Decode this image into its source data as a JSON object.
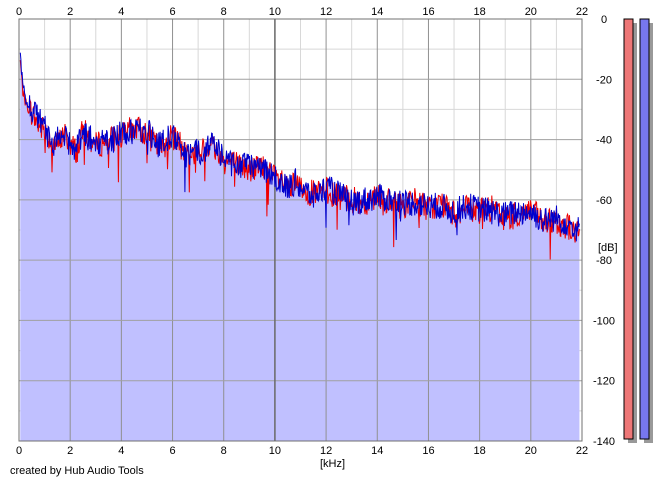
{
  "chart_data": {
    "type": "area",
    "title": "",
    "xlabel": "[kHz]",
    "ylabel": "[dB]",
    "xlim": [
      0,
      22
    ],
    "ylim": [
      -140,
      0
    ],
    "x_ticks": [
      "0",
      "2",
      "4",
      "6",
      "8",
      "10",
      "12",
      "14",
      "16",
      "18",
      "20",
      "22"
    ],
    "y_ticks": [
      "0",
      "-20",
      "-40",
      "-60",
      "-80",
      "-100",
      "-120",
      "-140"
    ],
    "grid": true,
    "legend": "none",
    "colors": {
      "fill": "#c0c0ff",
      "left_channel": "#ee0000",
      "right_channel": "#0000cc",
      "meter_left": "#ee7777",
      "meter_right": "#7777ee"
    },
    "series": [
      {
        "color": "#ee0000",
        "x": [
          0.05,
          0.15,
          0.3,
          0.5,
          0.75,
          1.0,
          1.25,
          1.5,
          1.75,
          2.0,
          2.25,
          2.5,
          3.0,
          3.5,
          4.0,
          4.5,
          5.0,
          5.5,
          6.0,
          6.5,
          7.0,
          7.5,
          8.0,
          8.5,
          9.0,
          9.5,
          10.0,
          10.3,
          10.5,
          10.8,
          11.0,
          11.5,
          12.0,
          12.5,
          13.0,
          13.5,
          14.0,
          14.5,
          15.0,
          15.5,
          16.0,
          16.5,
          17.0,
          17.5,
          18.0,
          18.5,
          19.0,
          19.5,
          20.0,
          20.5,
          21.0,
          21.5,
          21.9
        ],
        "y": [
          -14,
          -24,
          -29,
          -31,
          -35,
          -37,
          -40,
          -42,
          -38,
          -41,
          -44,
          -37,
          -42,
          -40,
          -39,
          -36,
          -38,
          -43,
          -39,
          -44,
          -45,
          -41,
          -47,
          -48,
          -50,
          -49,
          -53,
          -54,
          -57,
          -55,
          -56,
          -58,
          -57,
          -59,
          -60,
          -61,
          -58,
          -61,
          -62,
          -60,
          -63,
          -61,
          -65,
          -63,
          -64,
          -63,
          -66,
          -65,
          -63,
          -68,
          -67,
          -69,
          -72
        ]
      },
      {
        "color": "#0000cc",
        "x": [
          0.05,
          0.15,
          0.3,
          0.5,
          0.75,
          1.0,
          1.25,
          1.5,
          1.75,
          2.0,
          2.25,
          2.5,
          3.0,
          3.5,
          4.0,
          4.5,
          5.0,
          5.5,
          6.0,
          6.5,
          7.0,
          7.5,
          8.0,
          8.5,
          9.0,
          9.5,
          10.0,
          10.3,
          10.5,
          10.8,
          11.0,
          11.5,
          12.0,
          12.5,
          13.0,
          13.5,
          14.0,
          14.5,
          15.0,
          15.5,
          16.0,
          16.5,
          17.0,
          17.5,
          18.0,
          18.5,
          19.0,
          19.5,
          20.0,
          20.5,
          21.0,
          21.5,
          21.9
        ],
        "y": [
          -12,
          -22,
          -28,
          -30,
          -33,
          -36,
          -42,
          -40,
          -39,
          -42,
          -43,
          -38,
          -41,
          -41,
          -38,
          -37,
          -37,
          -42,
          -38,
          -45,
          -44,
          -42,
          -46,
          -49,
          -49,
          -50,
          -52,
          -55,
          -56,
          -54,
          -56,
          -59,
          -56,
          -58,
          -61,
          -60,
          -59,
          -60,
          -61,
          -61,
          -62,
          -62,
          -64,
          -62,
          -63,
          -64,
          -65,
          -64,
          -64,
          -67,
          -66,
          -68,
          -70
        ]
      }
    ]
  },
  "ui": {
    "credit": "created by Hub Audio Tools"
  }
}
